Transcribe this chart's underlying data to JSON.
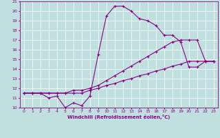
{
  "xlabel": "Windchill (Refroidissement éolien,°C)",
  "xlim": [
    -0.5,
    23.5
  ],
  "ylim": [
    10,
    21
  ],
  "xticks": [
    0,
    1,
    2,
    3,
    4,
    5,
    6,
    7,
    8,
    9,
    10,
    11,
    12,
    13,
    14,
    15,
    16,
    17,
    18,
    19,
    20,
    21,
    22,
    23
  ],
  "yticks": [
    10,
    11,
    12,
    13,
    14,
    15,
    16,
    17,
    18,
    19,
    20,
    21
  ],
  "line_color": "#880088",
  "bg_color": "#c0e0e0",
  "grid_color": "#a8d0d0",
  "line1_x": [
    0,
    1,
    2,
    3,
    4,
    5,
    6,
    7,
    8,
    9,
    10,
    11,
    12,
    13,
    14,
    15,
    16,
    17,
    18,
    19,
    20,
    21,
    22,
    23
  ],
  "line1_y": [
    11.5,
    11.5,
    11.5,
    11.0,
    11.2,
    10.0,
    10.5,
    10.2,
    11.2,
    15.5,
    19.5,
    20.5,
    20.5,
    20.0,
    19.2,
    19.0,
    18.5,
    17.5,
    17.5,
    16.8,
    14.2,
    14.2,
    14.8,
    14.8
  ],
  "line2_x": [
    0,
    1,
    2,
    3,
    4,
    5,
    6,
    7,
    8,
    9,
    10,
    11,
    12,
    13,
    14,
    15,
    16,
    17,
    18,
    19,
    20,
    21,
    22,
    23
  ],
  "line2_y": [
    11.5,
    11.5,
    11.5,
    11.5,
    11.5,
    11.5,
    11.5,
    11.5,
    11.8,
    12.0,
    12.3,
    12.5,
    12.8,
    13.0,
    13.3,
    13.5,
    13.8,
    14.0,
    14.3,
    14.5,
    14.8,
    14.8,
    14.8,
    14.8
  ],
  "line3_x": [
    0,
    1,
    2,
    3,
    4,
    5,
    6,
    7,
    8,
    9,
    10,
    11,
    12,
    13,
    14,
    15,
    16,
    17,
    18,
    19,
    20,
    21,
    22,
    23
  ],
  "line3_y": [
    11.5,
    11.5,
    11.5,
    11.5,
    11.5,
    11.5,
    11.8,
    11.8,
    12.0,
    12.3,
    12.8,
    13.3,
    13.8,
    14.3,
    14.8,
    15.3,
    15.8,
    16.3,
    16.8,
    17.0,
    17.0,
    17.0,
    14.8,
    14.8
  ]
}
